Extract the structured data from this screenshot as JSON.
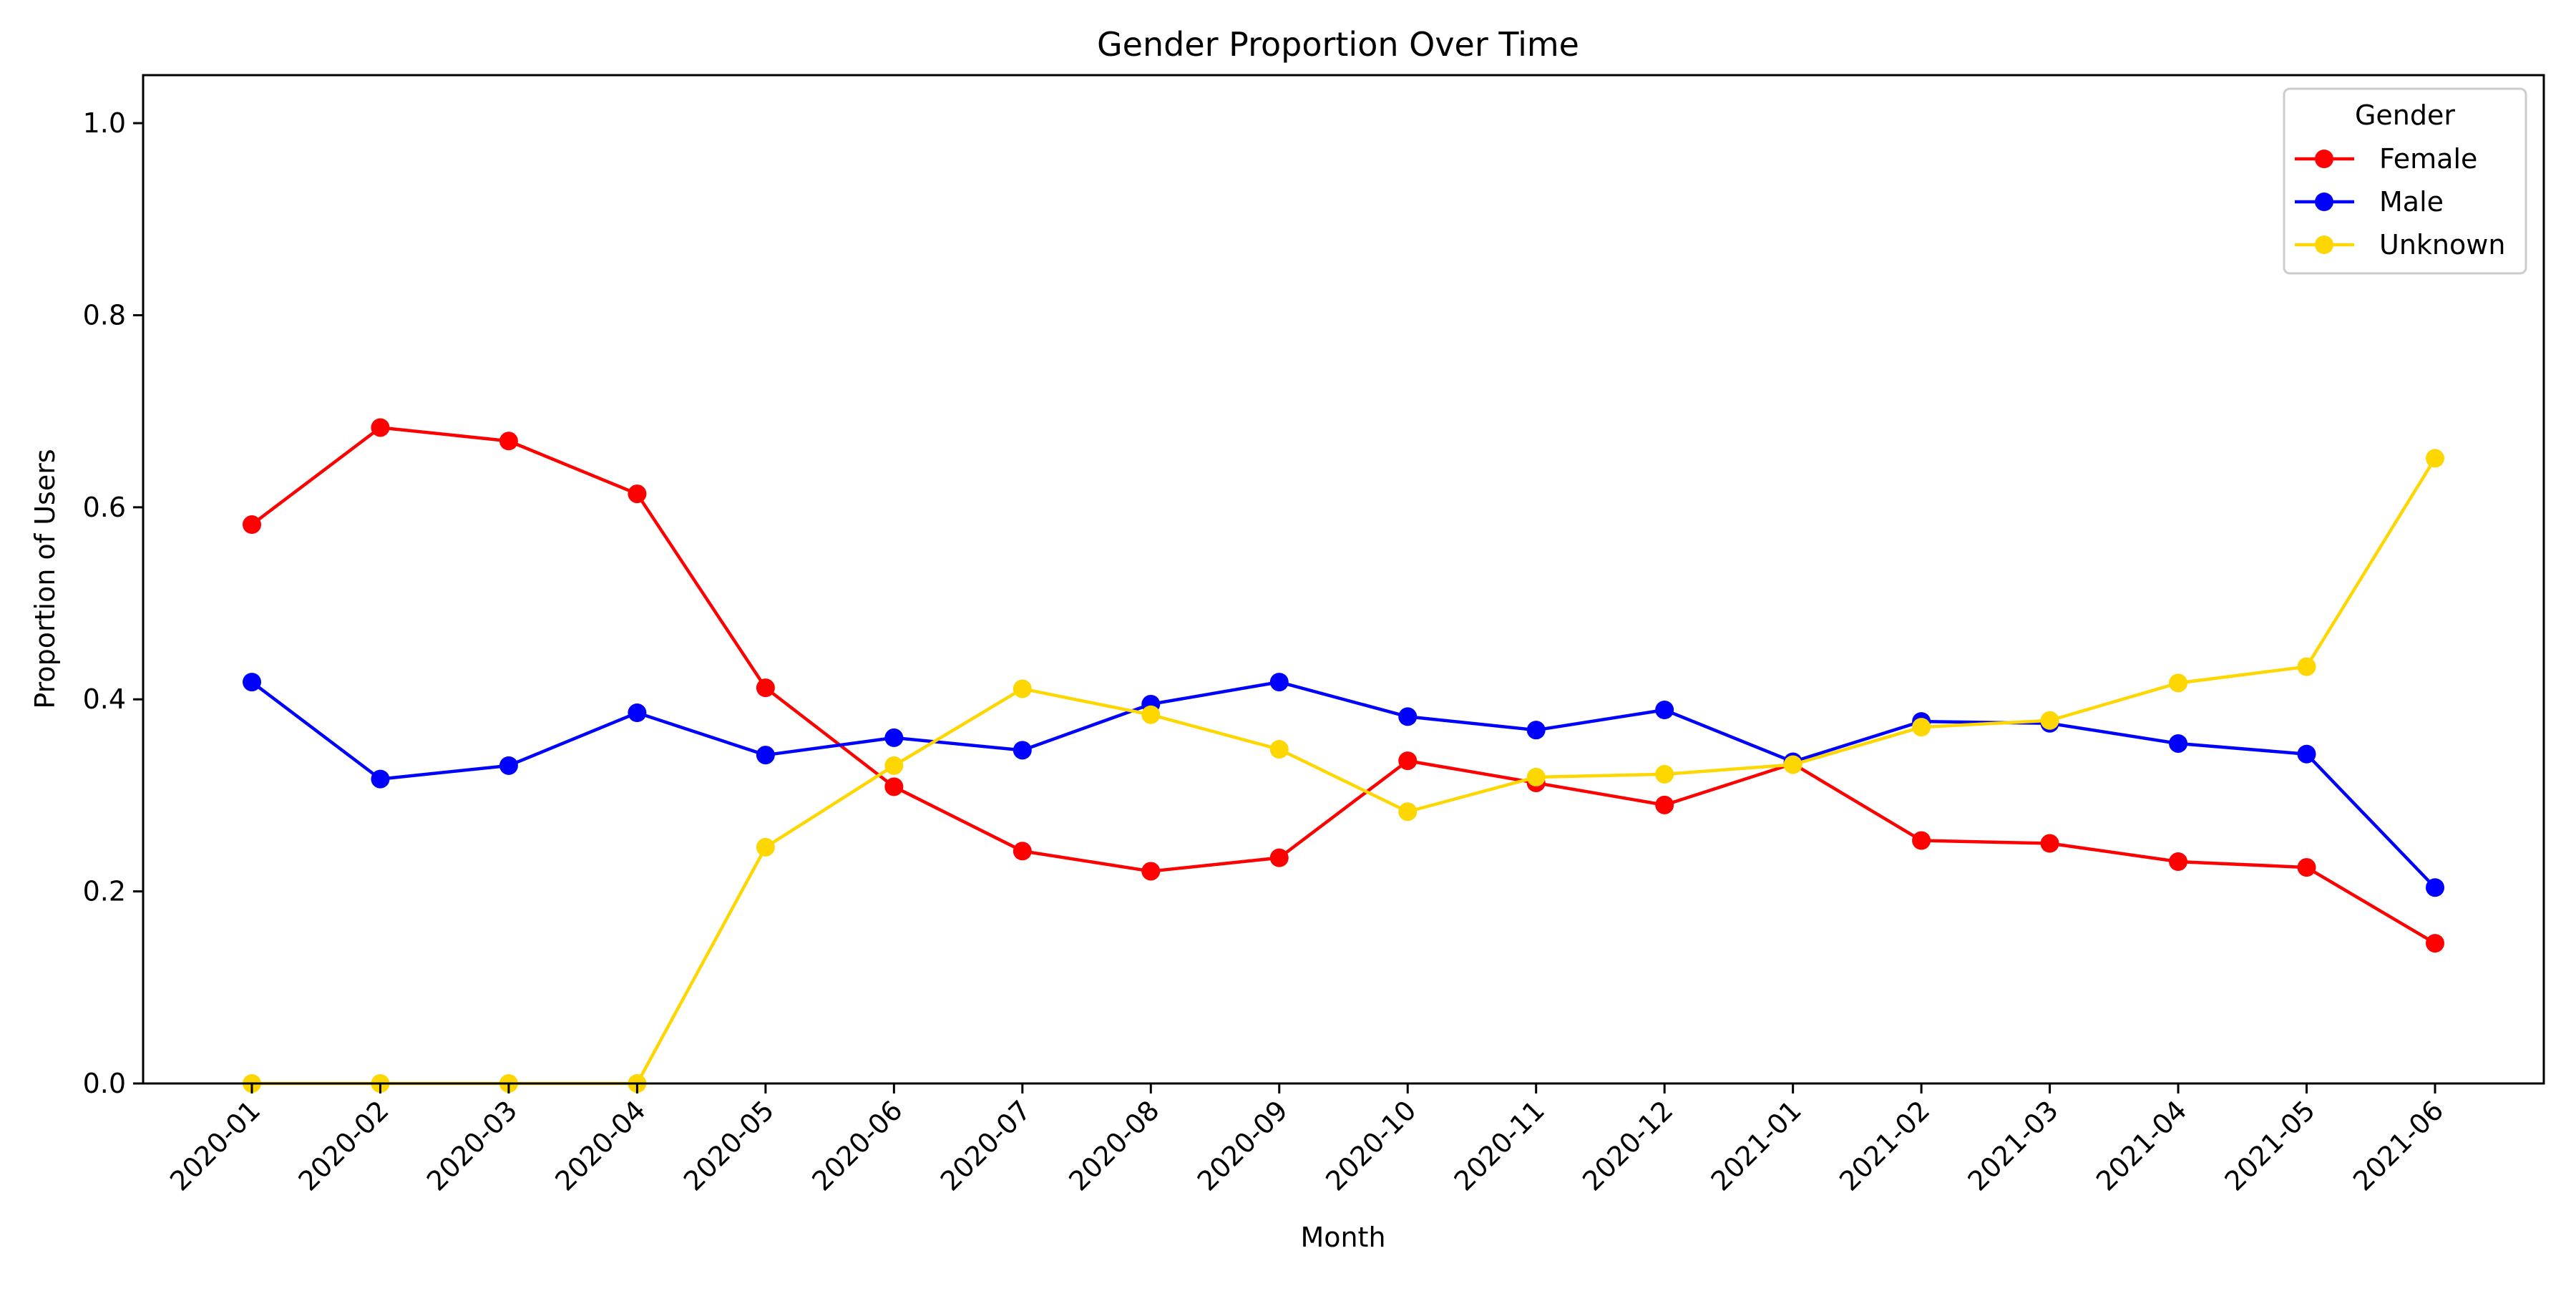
{
  "chart_data": {
    "type": "line",
    "title": "Gender Proportion Over Time",
    "xlabel": "Month",
    "ylabel": "Proportion of Users",
    "categories": [
      "2020-01",
      "2020-02",
      "2020-03",
      "2020-04",
      "2020-05",
      "2020-06",
      "2020-07",
      "2020-08",
      "2020-09",
      "2020-10",
      "2020-11",
      "2020-12",
      "2021-01",
      "2021-02",
      "2021-03",
      "2021-04",
      "2021-05",
      "2021-06"
    ],
    "ylim": [
      0,
      1.05
    ],
    "yticks": [
      0.0,
      0.2,
      0.4,
      0.6,
      0.8,
      1.0
    ],
    "ytick_labels": [
      "0.0",
      "0.2",
      "0.4",
      "0.6",
      "0.8",
      "1.0"
    ],
    "grid": false,
    "legend": {
      "title": "Gender",
      "placement": "top-right"
    },
    "series": [
      {
        "name": "Female",
        "color": "#ff0000",
        "values": [
          0.582,
          0.683,
          0.669,
          0.614,
          0.412,
          0.309,
          0.242,
          0.221,
          0.235,
          0.336,
          0.313,
          0.29,
          0.333,
          0.253,
          0.25,
          0.231,
          0.225,
          0.146
        ]
      },
      {
        "name": "Male",
        "color": "#0000ff",
        "values": [
          0.418,
          0.317,
          0.331,
          0.386,
          0.342,
          0.36,
          0.347,
          0.395,
          0.418,
          0.382,
          0.368,
          0.389,
          0.335,
          0.377,
          0.375,
          0.354,
          0.343,
          0.204
        ]
      },
      {
        "name": "Unknown",
        "color": "#ffd700",
        "values": [
          0.0,
          0.0,
          0.0,
          0.0,
          0.246,
          0.331,
          0.411,
          0.384,
          0.348,
          0.283,
          0.319,
          0.322,
          0.332,
          0.371,
          0.378,
          0.417,
          0.434,
          0.651
        ]
      }
    ]
  }
}
